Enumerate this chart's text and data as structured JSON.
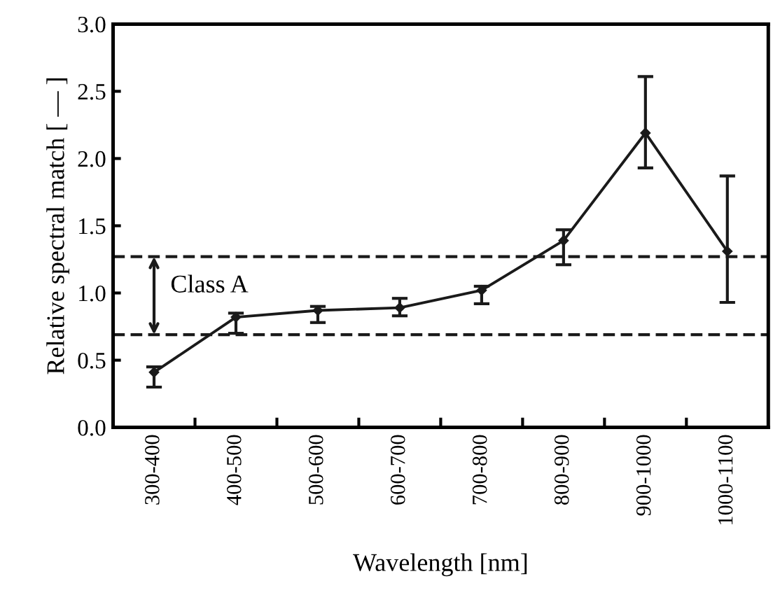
{
  "chart_data": {
    "type": "line",
    "xlabel": "Wavelength [nm]",
    "ylabel": "Relative spectral match [ — ]",
    "categories": [
      "300-400",
      "400-500",
      "500-600",
      "600-700",
      "700-800",
      "800-900",
      "900-1000",
      "1000-1100"
    ],
    "series": [
      {
        "color": "#1a1a1a",
        "values": [
          0.41,
          0.82,
          0.87,
          0.89,
          1.02,
          1.39,
          2.19,
          1.31
        ],
        "errors": [
          [
            0.3,
            0.45
          ],
          [
            0.7,
            0.85
          ],
          [
            0.78,
            0.9
          ],
          [
            0.83,
            0.96
          ],
          [
            0.92,
            1.05
          ],
          [
            1.21,
            1.47
          ],
          [
            1.93,
            2.61
          ],
          [
            0.93,
            1.87
          ]
        ]
      }
    ],
    "ylim": [
      0.0,
      3.0
    ],
    "yticks": [
      {
        "value": 0,
        "label": "0.0"
      },
      {
        "value": 0.5,
        "label": "0.5"
      },
      {
        "value": 1,
        "label": "1.0"
      },
      {
        "value": 1.5,
        "label": "1.5"
      },
      {
        "value": 2,
        "label": "2.0"
      },
      {
        "value": 2.5,
        "label": "2.5"
      },
      {
        "value": 3,
        "label": "3.0"
      }
    ],
    "ref_lines": [
      {
        "axis": "y",
        "value": 1.27,
        "color": "#1a1a1a",
        "line_style": "dashed"
      },
      {
        "axis": "y",
        "value": 0.69,
        "color": "#1a1a1a",
        "line_style": "dashed"
      }
    ],
    "annotations": [
      {
        "text": "Class A",
        "y": 1.27
      }
    ],
    "marker": "diamond",
    "line_style": "solid",
    "grid": false,
    "legend": false
  }
}
